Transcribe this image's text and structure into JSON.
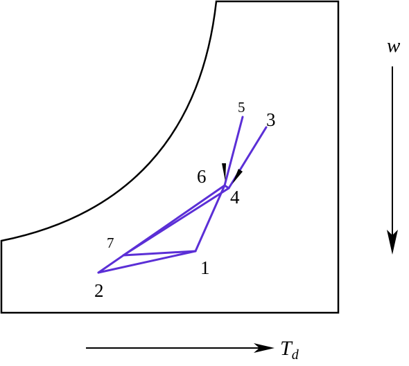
{
  "colors": {
    "background": "#ffffff",
    "outline": "#000000",
    "path": "#5b2fd6",
    "text": "#000000"
  },
  "axis": {
    "vertical_symbol": "w",
    "horizontal_symbol": "T",
    "horizontal_subscript": "d"
  },
  "points": {
    "p1": "1",
    "p2": "2",
    "p3": "3",
    "p4": "4",
    "p5": "5",
    "p6": "6",
    "p7": "7"
  }
}
